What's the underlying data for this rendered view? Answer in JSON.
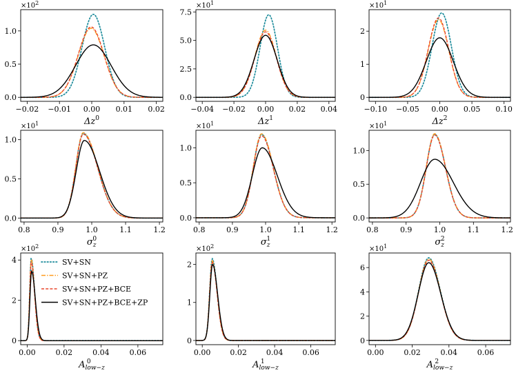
{
  "colors": {
    "SV+SN": "#1a8a9a",
    "SV+SN+PZ": "#ff9a1a",
    "SV+SN+PZ+BCE": "#e8452c",
    "SV+SN+PZ+BCE+ZP": "#000000"
  },
  "chart_data": [
    {
      "type": "line",
      "xlabel_main": "Δz",
      "xlabel_sup": "0",
      "xlabel_sub": "",
      "multiplier_base": "×10",
      "multiplier_exp": "2",
      "xlim": [
        -0.022,
        0.022
      ],
      "ylim": [
        -0.06,
        1.32
      ],
      "xticks": [
        -0.02,
        -0.01,
        0.0,
        0.01,
        0.02
      ],
      "xtick_labels": [
        "−0.02",
        "−0.01",
        "0.00",
        "0.01",
        "0.02"
      ],
      "yticks": [
        0.0,
        0.5,
        1.0
      ],
      "ytick_labels": [
        "0.0",
        "0.5",
        "1.0"
      ],
      "series": [
        {
          "name": "SV+SN",
          "shape": "gauss",
          "mu": 0.0005,
          "s": 0.0035,
          "h": 1.25
        },
        {
          "name": "SV+SN+PZ",
          "shape": "gauss",
          "mu": -0.0002,
          "s": 0.004,
          "h": 1.04
        },
        {
          "name": "SV+SN+PZ+BCE",
          "shape": "gauss",
          "mu": -0.0002,
          "s": 0.004,
          "h": 1.06
        },
        {
          "name": "SV+SN+PZ+BCE+ZP",
          "shape": "gauss",
          "mu": 0.0005,
          "s": 0.0055,
          "h": 0.79
        }
      ]
    },
    {
      "type": "line",
      "xlabel_main": "Δz",
      "xlabel_sup": "1",
      "xlabel_sub": "",
      "multiplier_base": "×10",
      "multiplier_exp": "1",
      "xlim": [
        -0.044,
        0.044
      ],
      "ylim": [
        -0.35,
        7.7
      ],
      "xticks": [
        -0.04,
        -0.02,
        0.0,
        0.02,
        0.04
      ],
      "xtick_labels": [
        "−0.04",
        "−0.02",
        "0.00",
        "0.02",
        "0.04"
      ],
      "yticks": [
        0.0,
        2.5,
        5.0,
        7.5
      ],
      "ytick_labels": [
        "0.0",
        "2.5",
        "5.0",
        "7.5"
      ],
      "series": [
        {
          "name": "SV+SN",
          "shape": "gauss",
          "mu": 0.002,
          "s": 0.0055,
          "h": 7.25
        },
        {
          "name": "SV+SN+PZ",
          "shape": "gauss",
          "mu": 0.0,
          "s": 0.0068,
          "h": 5.9
        },
        {
          "name": "SV+SN+PZ+BCE",
          "shape": "gauss",
          "mu": 0.0,
          "s": 0.0068,
          "h": 5.75
        },
        {
          "name": "SV+SN+PZ+BCE+ZP",
          "shape": "gauss",
          "mu": 0.0,
          "s": 0.0073,
          "h": 5.45
        }
      ]
    },
    {
      "type": "line",
      "xlabel_main": "Δz",
      "xlabel_sup": "2",
      "xlabel_sub": "",
      "multiplier_base": "×10",
      "multiplier_exp": "1",
      "xlim": [
        -0.11,
        0.11
      ],
      "ylim": [
        -0.12,
        2.65
      ],
      "xticks": [
        -0.1,
        -0.05,
        0.0,
        0.05,
        0.1
      ],
      "xtick_labels": [
        "−0.10",
        "−0.05",
        "0.00",
        "0.05",
        "0.10"
      ],
      "yticks": [
        0.0,
        1.0,
        2.0
      ],
      "ytick_labels": [
        "0",
        "1",
        "2"
      ],
      "series": [
        {
          "name": "SV+SN",
          "shape": "gauss",
          "mu": 0.003,
          "s": 0.015,
          "h": 2.55
        },
        {
          "name": "SV+SN+PZ",
          "shape": "gauss",
          "mu": -0.002,
          "s": 0.016,
          "h": 2.35
        },
        {
          "name": "SV+SN+PZ+BCE",
          "shape": "gauss",
          "mu": -0.002,
          "s": 0.016,
          "h": 2.4
        },
        {
          "name": "SV+SN+PZ+BCE+ZP",
          "shape": "gauss",
          "mu": 0.0,
          "s": 0.021,
          "h": 1.8
        }
      ]
    },
    {
      "type": "line",
      "xlabel_main": "σ",
      "xlabel_sup": "0",
      "xlabel_sub": "z",
      "multiplier_base": "×10",
      "multiplier_exp": "1",
      "xlim": [
        0.79,
        1.21
      ],
      "ylim": [
        -0.05,
        1.12
      ],
      "xticks": [
        0.8,
        0.9,
        1.0,
        1.1,
        1.2
      ],
      "xtick_labels": [
        "0.8",
        "0.9",
        "1.0",
        "1.1",
        "1.2"
      ],
      "yticks": [
        0.0,
        0.5,
        1.0
      ],
      "ytick_labels": [
        "0.0",
        "0.5",
        "1.0"
      ],
      "series": [
        {
          "name": "SV+SN",
          "shape": "skew",
          "mu": 0.975,
          "sl": 0.022,
          "sr": 0.042,
          "h": 1.08
        },
        {
          "name": "SV+SN+PZ",
          "shape": "skew",
          "mu": 0.975,
          "sl": 0.022,
          "sr": 0.042,
          "h": 1.09
        },
        {
          "name": "SV+SN+PZ+BCE",
          "shape": "skew",
          "mu": 0.975,
          "sl": 0.022,
          "sr": 0.042,
          "h": 1.07
        },
        {
          "name": "SV+SN+PZ+BCE+ZP",
          "shape": "skew",
          "mu": 0.978,
          "sl": 0.024,
          "sr": 0.045,
          "h": 0.99
        }
      ]
    },
    {
      "type": "line",
      "xlabel_main": "σ",
      "xlabel_sup": "1",
      "xlabel_sub": "z",
      "multiplier_base": "×10",
      "multiplier_exp": "1",
      "xlim": [
        0.79,
        1.21
      ],
      "ylim": [
        -0.06,
        1.25
      ],
      "xticks": [
        0.8,
        0.9,
        1.0,
        1.1,
        1.2
      ],
      "xtick_labels": [
        "0.8",
        "0.9",
        "1.0",
        "1.1",
        "1.2"
      ],
      "yticks": [
        0.0,
        0.5,
        1.0
      ],
      "ytick_labels": [
        "0.0",
        "0.5",
        "1.0"
      ],
      "series": [
        {
          "name": "SV+SN",
          "shape": "skew",
          "mu": 0.988,
          "sl": 0.025,
          "sr": 0.035,
          "h": 1.19
        },
        {
          "name": "SV+SN+PZ",
          "shape": "skew",
          "mu": 0.988,
          "sl": 0.025,
          "sr": 0.035,
          "h": 1.2
        },
        {
          "name": "SV+SN+PZ+BCE",
          "shape": "skew",
          "mu": 0.988,
          "sl": 0.025,
          "sr": 0.035,
          "h": 1.17
        },
        {
          "name": "SV+SN+PZ+BCE+ZP",
          "shape": "skew",
          "mu": 0.99,
          "sl": 0.03,
          "sr": 0.045,
          "h": 1.0
        }
      ]
    },
    {
      "type": "line",
      "xlabel_main": "σ",
      "xlabel_sup": "2",
      "xlabel_sub": "z",
      "multiplier_base": "×10",
      "multiplier_exp": "1",
      "xlim": [
        0.79,
        1.21
      ],
      "ylim": [
        -0.06,
        1.3
      ],
      "xticks": [
        0.8,
        0.9,
        1.0,
        1.1,
        1.2
      ],
      "xtick_labels": [
        "0.8",
        "0.9",
        "1.0",
        "1.1",
        "1.2"
      ],
      "yticks": [
        0.0,
        0.5,
        1.0
      ],
      "ytick_labels": [
        "0.0",
        "0.5",
        "1.0"
      ],
      "series": [
        {
          "name": "SV+SN",
          "shape": "skew",
          "mu": 0.985,
          "sl": 0.025,
          "sr": 0.032,
          "h": 1.24
        },
        {
          "name": "SV+SN+PZ",
          "shape": "skew",
          "mu": 0.985,
          "sl": 0.025,
          "sr": 0.032,
          "h": 1.25
        },
        {
          "name": "SV+SN+PZ+BCE",
          "shape": "skew",
          "mu": 0.985,
          "sl": 0.025,
          "sr": 0.032,
          "h": 1.23
        },
        {
          "name": "SV+SN+PZ+BCE+ZP",
          "shape": "skew",
          "mu": 0.985,
          "sl": 0.042,
          "sr": 0.055,
          "h": 0.87
        }
      ]
    },
    {
      "type": "line",
      "xlabel_main": "A",
      "xlabel_sup": "0",
      "xlabel_sub": "low−z",
      "multiplier_base": "×10",
      "multiplier_exp": "2",
      "xlim": [
        -0.0035,
        0.0735
      ],
      "ylim": [
        -0.2,
        4.35
      ],
      "xticks": [
        0.0,
        0.02,
        0.04,
        0.06
      ],
      "xtick_labels": [
        "0.00",
        "0.02",
        "0.04",
        "0.06"
      ],
      "yticks": [
        0.0,
        2.0,
        4.0
      ],
      "ytick_labels": [
        "0",
        "2",
        "4"
      ],
      "series": [
        {
          "name": "SV+SN",
          "shape": "skew",
          "mu": 0.0022,
          "sl": 0.0008,
          "sr": 0.0018,
          "h": 4.1
        },
        {
          "name": "SV+SN+PZ",
          "shape": "skew",
          "mu": 0.0022,
          "sl": 0.0008,
          "sr": 0.0018,
          "h": 4.05
        },
        {
          "name": "SV+SN+PZ+BCE",
          "shape": "skew",
          "mu": 0.0022,
          "sl": 0.0008,
          "sr": 0.0018,
          "h": 3.9
        },
        {
          "name": "SV+SN+PZ+BCE+ZP",
          "shape": "skew",
          "mu": 0.0024,
          "sl": 0.0009,
          "sr": 0.002,
          "h": 3.45
        }
      ],
      "legend": {
        "placement": "upper-left",
        "entries": [
          "SV+SN",
          "SV+SN+PZ",
          "SV+SN+PZ+BCE",
          "SV+SN+PZ+BCE+ZP"
        ]
      }
    },
    {
      "type": "line",
      "xlabel_main": "A",
      "xlabel_sup": "1",
      "xlabel_sub": "low−z",
      "multiplier_base": "×10",
      "multiplier_exp": "2",
      "xlim": [
        -0.0035,
        0.0735
      ],
      "ylim": [
        -0.11,
        2.3
      ],
      "xticks": [
        0.0,
        0.02,
        0.04,
        0.06
      ],
      "xtick_labels": [
        "0.00",
        "0.02",
        "0.04",
        "0.06"
      ],
      "yticks": [
        0.0,
        1.0,
        2.0
      ],
      "ytick_labels": [
        "0",
        "1",
        "2"
      ],
      "series": [
        {
          "name": "SV+SN",
          "shape": "skew",
          "mu": 0.0055,
          "sl": 0.0014,
          "sr": 0.0027,
          "h": 2.15
        },
        {
          "name": "SV+SN+PZ",
          "shape": "skew",
          "mu": 0.0055,
          "sl": 0.0014,
          "sr": 0.0027,
          "h": 2.1
        },
        {
          "name": "SV+SN+PZ+BCE",
          "shape": "skew",
          "mu": 0.0055,
          "sl": 0.0014,
          "sr": 0.0027,
          "h": 2.05
        },
        {
          "name": "SV+SN+PZ+BCE+ZP",
          "shape": "skew",
          "mu": 0.0057,
          "sl": 0.0015,
          "sr": 0.0028,
          "h": 2.0
        }
      ]
    },
    {
      "type": "line",
      "xlabel_main": "A",
      "xlabel_sup": "2",
      "xlabel_sub": "low−z",
      "multiplier_base": "×10",
      "multiplier_exp": "1",
      "xlim": [
        -0.0035,
        0.0735
      ],
      "ylim": [
        -0.35,
        7.2
      ],
      "xticks": [
        0.0,
        0.02,
        0.04,
        0.06
      ],
      "xtick_labels": [
        "0.00",
        "0.02",
        "0.04",
        "0.06"
      ],
      "yticks": [
        0.0,
        2.0,
        4.0,
        6.0
      ],
      "ytick_labels": [
        "0",
        "2",
        "4",
        "6"
      ],
      "series": [
        {
          "name": "SV+SN",
          "shape": "skew",
          "mu": 0.029,
          "sl": 0.0055,
          "sr": 0.0063,
          "h": 6.8
        },
        {
          "name": "SV+SN+PZ",
          "shape": "skew",
          "mu": 0.029,
          "sl": 0.0055,
          "sr": 0.0063,
          "h": 6.7
        },
        {
          "name": "SV+SN+PZ+BCE",
          "shape": "skew",
          "mu": 0.029,
          "sl": 0.0055,
          "sr": 0.0063,
          "h": 6.6
        },
        {
          "name": "SV+SN+PZ+BCE+ZP",
          "shape": "skew",
          "mu": 0.029,
          "sl": 0.0057,
          "sr": 0.0065,
          "h": 6.4
        }
      ]
    }
  ]
}
